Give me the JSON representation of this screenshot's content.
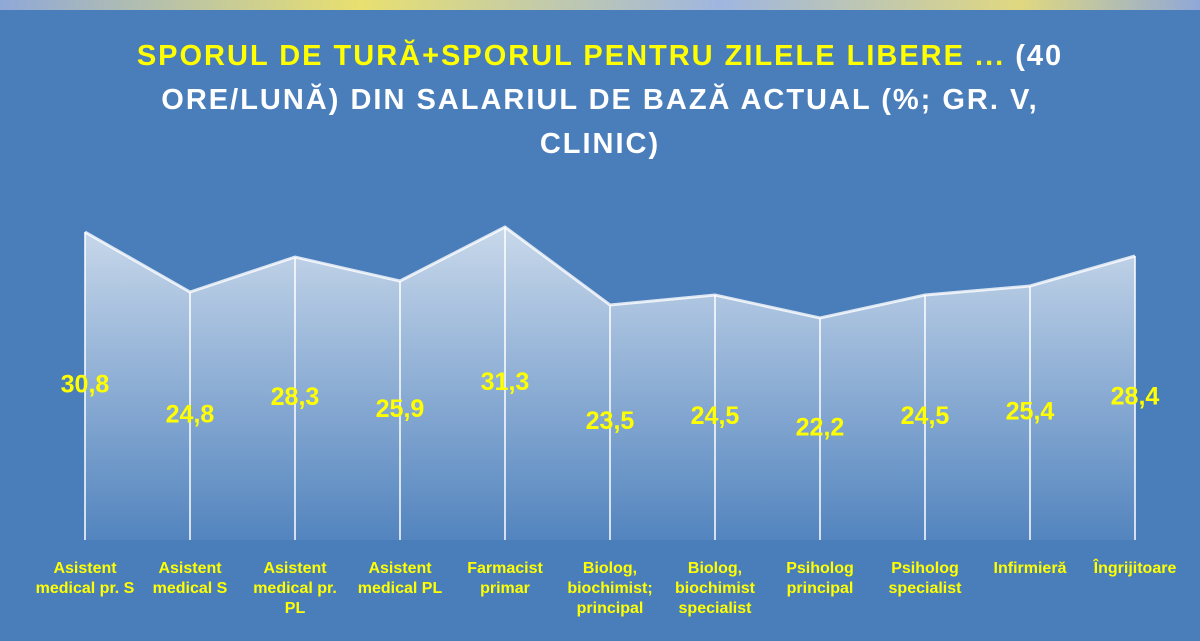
{
  "chart_data": {
    "type": "area",
    "title": "SPORUL DE TURĂ+SPORUL PENTRU ZILELE LIBERE ...",
    "title_continued": "(40 ORE/LUNĂ) DIN SALARIUL DE BAZĂ ACTUAL (%; GR. V, CLINIC)",
    "categories": [
      "Asistent medical pr. S",
      "Asistent medical S",
      "Asistent medical pr. PL",
      "Asistent medical PL",
      "Farmacist primar",
      "Biolog, biochimist; principal",
      "Biolog, biochimist specialist",
      "Psiholog principal",
      "Psiholog specialist",
      "Infirmieră",
      "Îngrijitoare"
    ],
    "values": [
      30.8,
      24.8,
      28.3,
      25.9,
      31.3,
      23.5,
      24.5,
      22.2,
      24.5,
      25.4,
      28.4
    ],
    "value_labels": [
      "30,8",
      "24,8",
      "28,3",
      "25,9",
      "31,3",
      "23,5",
      "24,5",
      "22,2",
      "24,5",
      "25,4",
      "28,4"
    ],
    "ylim": [
      0,
      35
    ],
    "color": "#ffffff",
    "label_color": "#ffff00"
  }
}
